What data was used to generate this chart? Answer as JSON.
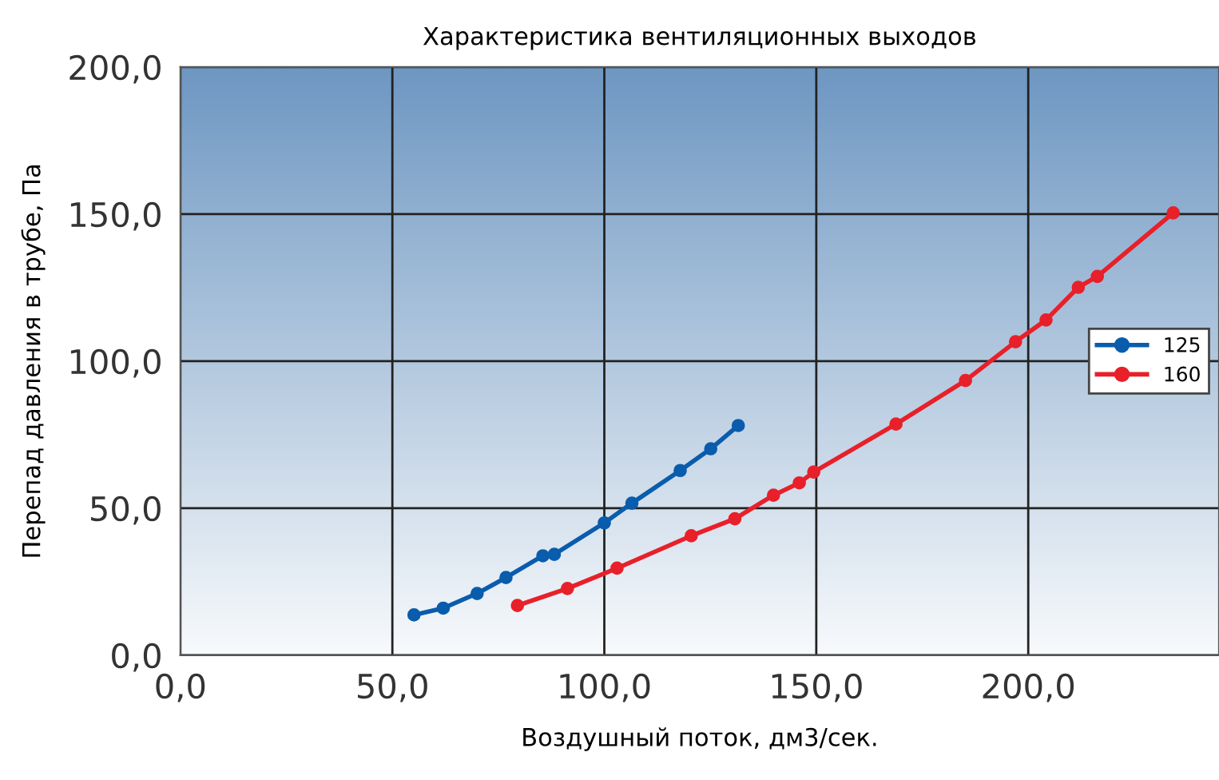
{
  "chart_data": {
    "type": "line",
    "title": "Характеристика вентиляционных выходов",
    "xlabel": "Воздушный поток, дм3/сек.",
    "ylabel": "Перепад давления в трубе, Па",
    "xlim": [
      0,
      245
    ],
    "ylim": [
      0,
      200
    ],
    "xticks": [
      {
        "value": 0,
        "label": "0,0"
      },
      {
        "value": 50,
        "label": "50,0"
      },
      {
        "value": 100,
        "label": "100,0"
      },
      {
        "value": 150,
        "label": "150,0"
      },
      {
        "value": 200,
        "label": "200,0"
      }
    ],
    "yticks": [
      {
        "value": 0,
        "label": "0,0"
      },
      {
        "value": 50,
        "label": "50,0"
      },
      {
        "value": 100,
        "label": "100,0"
      },
      {
        "value": 150,
        "label": "150,0"
      },
      {
        "value": 200,
        "label": "200,0"
      }
    ],
    "grid": true,
    "legend": "right",
    "marker": "circle",
    "line_style": "solid",
    "series": [
      {
        "name": "125",
        "color": "#0a5cac",
        "x": [
          55.1,
          62,
          70,
          76.8,
          85.5,
          88.2,
          100,
          106.5,
          117.9,
          125.1,
          131.6
        ],
        "values": [
          13.7,
          16,
          21,
          26.4,
          33.8,
          34.3,
          45,
          51.7,
          62.8,
          70.2,
          78.1
        ]
      },
      {
        "name": "160",
        "color": "#e8202a",
        "x": [
          79.5,
          91.3,
          103,
          120.5,
          130.8,
          139.9,
          146,
          149.4,
          168.8,
          185.2,
          197,
          204.2,
          211.8,
          216.3,
          234.2
        ],
        "values": [
          16.9,
          22.7,
          29.6,
          40.6,
          46.4,
          54.4,
          58.6,
          62.3,
          78.6,
          93.4,
          106.6,
          114,
          125.1,
          128.8,
          150.4
        ]
      }
    ]
  }
}
